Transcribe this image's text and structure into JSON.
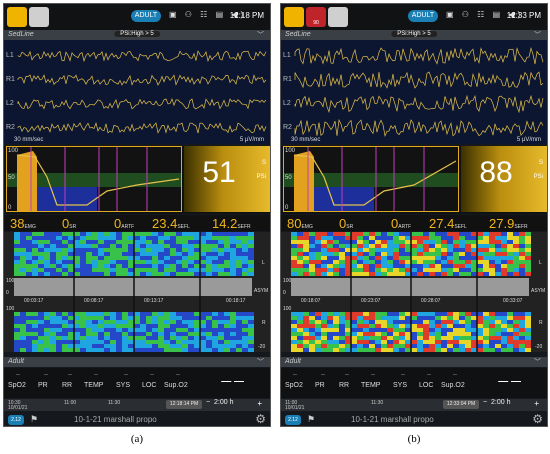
{
  "captions": {
    "a": "(a)",
    "b": "(b)"
  },
  "panels": [
    {
      "id": "a",
      "clock": "12:18 PM",
      "alarm_muted": false,
      "mode_badge": "ADULT",
      "section_title": "SedLine",
      "psi_alarm": "PSi:High > 5",
      "leads": [
        "L1",
        "R1",
        "L2",
        "R2"
      ],
      "sweep_speed": "30 mm/sec",
      "amplitude": "5 µV/mm",
      "psi_value": "51",
      "psi_unit": "PSi",
      "psi_s": "S",
      "trend_axis": [
        "100",
        "50",
        "0"
      ],
      "params": [
        {
          "value": "38",
          "label": "EMG"
        },
        {
          "value": "0",
          "label": "SR"
        },
        {
          "value": "0",
          "label": "ARTF"
        },
        {
          "value": "23.4",
          "label": "SEFL"
        },
        {
          "value": "14.2",
          "label": "SEFR"
        }
      ],
      "dsa_times": [
        "00:03:17",
        "00:08:17",
        "00:13:17",
        "00:18:17"
      ],
      "dsa_axis_left": [
        "100",
        "0",
        "100"
      ],
      "dsa_axis_right": [
        "L",
        "ASYM",
        "R",
        "-20"
      ],
      "adult_title": "Adult",
      "vitals": [
        "SpO2",
        "PR",
        "RR",
        "TEMP",
        "SYS",
        "LOC",
        "Sup.O2"
      ],
      "vital_placeholder": "--",
      "big_dashes": "— —",
      "timeline_start": "10:30",
      "timeline_date": "10/01/21",
      "timeline_ticks": [
        "11:00",
        "11:30"
      ],
      "timeline_current": "12:18:14 PM",
      "timeline_span": "2:00 h",
      "version": "2.12",
      "patient_name": "10-1-21 marshall propo"
    },
    {
      "id": "b",
      "clock": "12:33 PM",
      "alarm_muted": true,
      "mute_label": "90",
      "mode_badge": "ADULT",
      "section_title": "SedLine",
      "psi_alarm": "PSi:High > 5",
      "leads": [
        "L1",
        "R1",
        "L2",
        "R2"
      ],
      "sweep_speed": "30 mm/sec",
      "amplitude": "5 µV/mm",
      "psi_value": "88",
      "psi_unit": "PSi",
      "psi_s": "S",
      "trend_axis": [
        "100",
        "50",
        "0"
      ],
      "params": [
        {
          "value": "80",
          "label": "EMG"
        },
        {
          "value": "0",
          "label": "SR"
        },
        {
          "value": "0",
          "label": "ARTF"
        },
        {
          "value": "27.4",
          "label": "SEFL"
        },
        {
          "value": "27.9",
          "label": "SEFR"
        }
      ],
      "dsa_times": [
        "00:18:07",
        "00:23:07",
        "00:28:07",
        "00:33:07"
      ],
      "dsa_axis_left": [
        "100",
        "0",
        "100"
      ],
      "dsa_axis_right": [
        "L",
        "ASYM",
        "R",
        "-20"
      ],
      "adult_title": "Adult",
      "vitals": [
        "SpO2",
        "PR",
        "RR",
        "TEMP",
        "SYS",
        "LOC",
        "Sup.O2"
      ],
      "vital_placeholder": "--",
      "big_dashes": "— —",
      "timeline_start": "11:00",
      "timeline_date": "10/01/21",
      "timeline_ticks": [
        "11:30"
      ],
      "timeline_current": "12:33:04 PM",
      "timeline_span": "2:00 h",
      "version": "2.12",
      "patient_name": "10-1-21 marshall propo"
    }
  ]
}
